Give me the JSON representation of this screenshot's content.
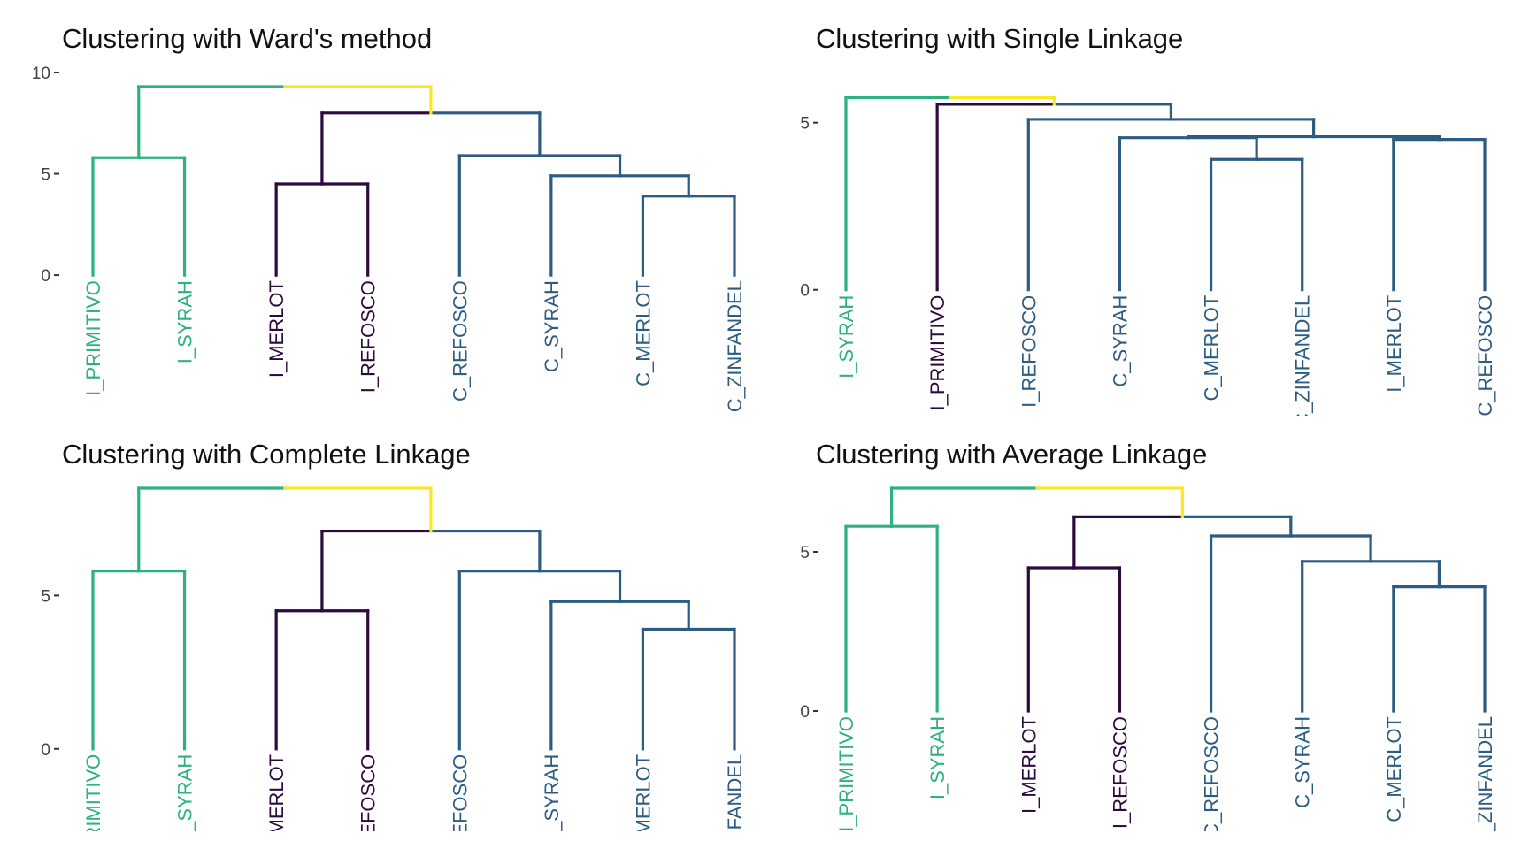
{
  "colors": {
    "green": "#2db27d",
    "yellow": "#fde725",
    "purple": "#2d0a3e",
    "blue": "#2c5c82",
    "axis": "#333333"
  },
  "chart_data": [
    {
      "type": "dendrogram",
      "title": "Clustering with Ward's method",
      "ylim": [
        -6.5,
        10
      ],
      "yticks": [
        0,
        5,
        10
      ],
      "leaves": [
        {
          "label": "I_PRIMITIVO",
          "color": "green"
        },
        {
          "label": "I_SYRAH",
          "color": "green"
        },
        {
          "label": "I_MERLOT",
          "color": "purple"
        },
        {
          "label": "I_REFOSCO",
          "color": "purple"
        },
        {
          "label": "C_REFOSCO",
          "color": "blue"
        },
        {
          "label": "C_SYRAH",
          "color": "blue"
        },
        {
          "label": "C_MERLOT",
          "color": "blue"
        },
        {
          "label": "C_ZINFANDEL",
          "color": "blue"
        }
      ],
      "merges": [
        {
          "left": 1,
          "right": 2,
          "height": 5.8,
          "color": "green"
        },
        {
          "left": 3,
          "right": 4,
          "height": 4.5,
          "color": "purple"
        },
        {
          "left": 7,
          "right": 8,
          "height": 3.9,
          "color": "blue"
        },
        {
          "left": 6,
          "right": "m3",
          "height": 4.9,
          "color": "blue"
        },
        {
          "left": 5,
          "right": "m4",
          "height": 5.9,
          "color": "blue"
        },
        {
          "left": "m2",
          "right": "m5",
          "height": 8.0,
          "color": "purple",
          "right_color": "blue"
        },
        {
          "left": "m1",
          "right": "m6",
          "height": 9.3,
          "color": "green",
          "right_color": "yellow"
        }
      ]
    },
    {
      "type": "dendrogram",
      "title": "Clustering with Single Linkage",
      "ylim": [
        -3.5,
        6.5
      ],
      "yticks": [
        0,
        5
      ],
      "leaves": [
        {
          "label": "I_SYRAH",
          "color": "green"
        },
        {
          "label": "I_PRIMITIVO",
          "color": "purple"
        },
        {
          "label": "I_REFOSCO",
          "color": "blue"
        },
        {
          "label": "C_SYRAH",
          "color": "blue"
        },
        {
          "label": "C_MERLOT",
          "color": "blue"
        },
        {
          "label": "C_ZINFANDEL",
          "color": "blue"
        },
        {
          "label": "I_MERLOT",
          "color": "blue"
        },
        {
          "label": "C_REFOSCO",
          "color": "blue"
        }
      ],
      "merges": [
        {
          "left": 5,
          "right": 6,
          "height": 3.9,
          "color": "blue"
        },
        {
          "left": 7,
          "right": 8,
          "height": 4.5,
          "color": "blue"
        },
        {
          "left": 4,
          "right": "m1",
          "height": 4.55,
          "color": "blue"
        },
        {
          "left": "m3",
          "right": "m2",
          "height": 4.58,
          "color": "blue"
        },
        {
          "left": 3,
          "right": "m4",
          "height": 5.1,
          "color": "blue"
        },
        {
          "left": 2,
          "right": "m5",
          "height": 5.55,
          "color": "purple",
          "right_color": "blue"
        },
        {
          "left": 1,
          "right": "m6",
          "height": 5.75,
          "color": "green",
          "right_color": "yellow"
        }
      ]
    },
    {
      "type": "dendrogram",
      "title": "Clustering with Complete Linkage",
      "ylim": [
        -2.4,
        8.5
      ],
      "yticks": [
        0,
        5
      ],
      "leaves": [
        {
          "label": "I_PRIMITIVO",
          "color": "green"
        },
        {
          "label": "I_SYRAH",
          "color": "green"
        },
        {
          "label": "I_MERLOT",
          "color": "purple"
        },
        {
          "label": "I_REFOSCO",
          "color": "purple"
        },
        {
          "label": "C_REFOSCO",
          "color": "blue"
        },
        {
          "label": "C_SYRAH",
          "color": "blue"
        },
        {
          "label": "C_MERLOT",
          "color": "blue"
        },
        {
          "label": "C_ZINFANDEL",
          "color": "blue"
        }
      ],
      "merges": [
        {
          "left": 1,
          "right": 2,
          "height": 5.8,
          "color": "green"
        },
        {
          "left": 3,
          "right": 4,
          "height": 4.5,
          "color": "purple"
        },
        {
          "left": 7,
          "right": 8,
          "height": 3.9,
          "color": "blue"
        },
        {
          "left": 6,
          "right": "m3",
          "height": 4.8,
          "color": "blue"
        },
        {
          "left": 5,
          "right": "m4",
          "height": 5.8,
          "color": "blue"
        },
        {
          "left": "m2",
          "right": "m5",
          "height": 7.1,
          "color": "purple",
          "right_color": "blue"
        },
        {
          "left": "m1",
          "right": "m6",
          "height": 8.5,
          "color": "green",
          "right_color": "yellow"
        }
      ]
    },
    {
      "type": "dendrogram",
      "title": "Clustering with Average Linkage",
      "ylim": [
        -3.5,
        7.0
      ],
      "yticks": [
        0,
        5
      ],
      "leaves": [
        {
          "label": "I_PRIMITIVO",
          "color": "green"
        },
        {
          "label": "I_SYRAH",
          "color": "green"
        },
        {
          "label": "I_MERLOT",
          "color": "purple"
        },
        {
          "label": "I_REFOSCO",
          "color": "purple"
        },
        {
          "label": "C_REFOSCO",
          "color": "blue"
        },
        {
          "label": "C_SYRAH",
          "color": "blue"
        },
        {
          "label": "C_MERLOT",
          "color": "blue"
        },
        {
          "label": "C_ZINFANDEL",
          "color": "blue"
        }
      ],
      "merges": [
        {
          "left": 1,
          "right": 2,
          "height": 5.8,
          "color": "green"
        },
        {
          "left": 3,
          "right": 4,
          "height": 4.5,
          "color": "purple"
        },
        {
          "left": 7,
          "right": 8,
          "height": 3.9,
          "color": "blue"
        },
        {
          "left": 6,
          "right": "m3",
          "height": 4.7,
          "color": "blue"
        },
        {
          "left": 5,
          "right": "m4",
          "height": 5.5,
          "color": "blue"
        },
        {
          "left": "m2",
          "right": "m5",
          "height": 6.1,
          "color": "purple",
          "right_color": "blue"
        },
        {
          "left": "m1",
          "right": "m6",
          "height": 7.0,
          "color": "green",
          "right_color": "yellow"
        }
      ]
    }
  ]
}
